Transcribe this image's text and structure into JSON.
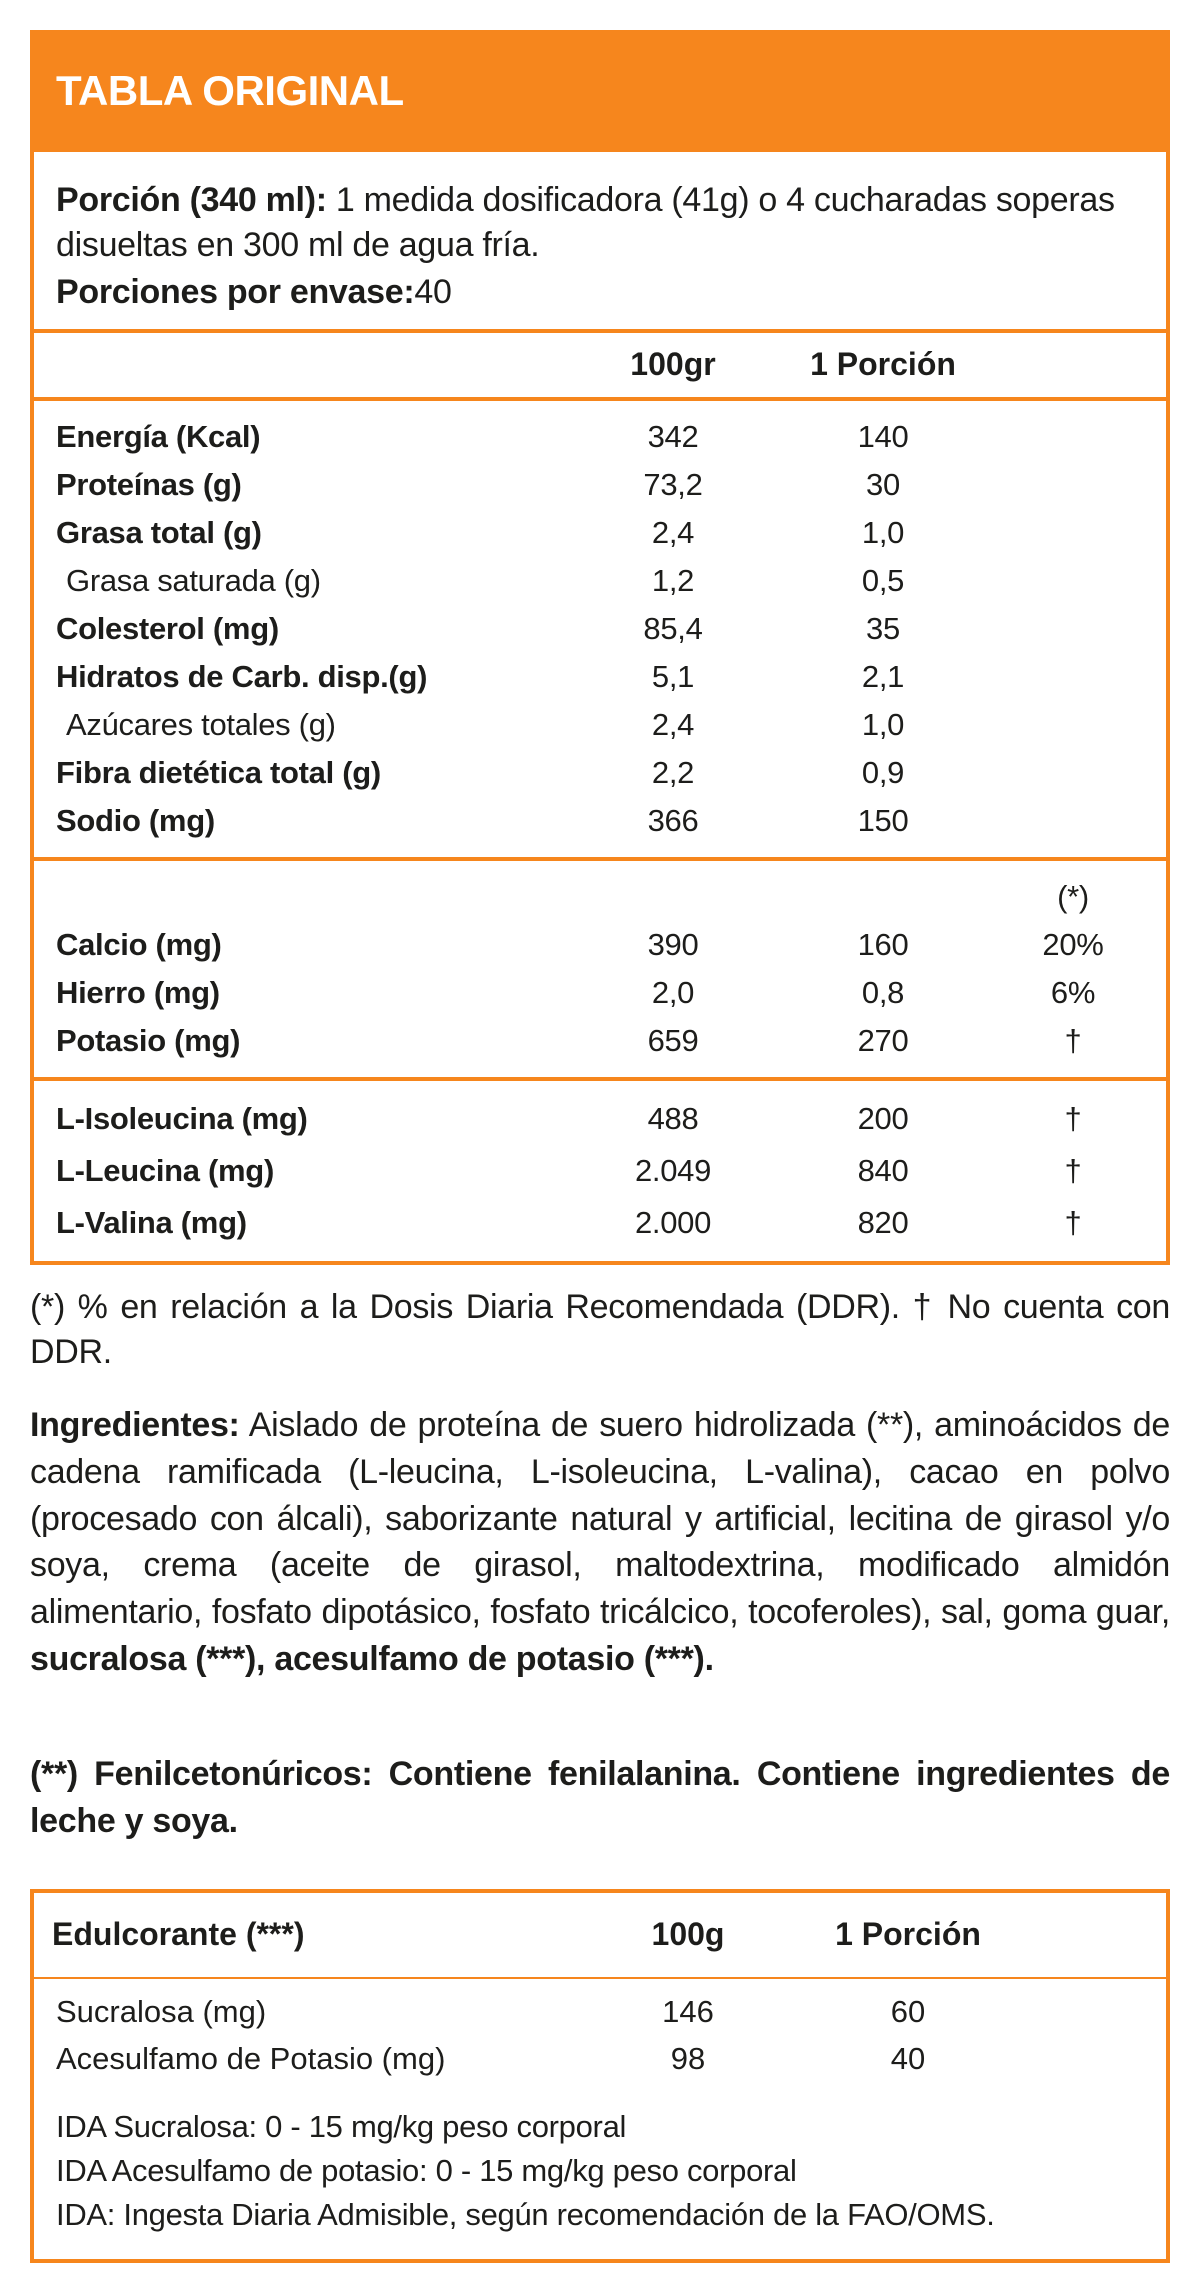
{
  "colors": {
    "accent": "#F6861D",
    "text": "#1d1d1b",
    "background": "#ffffff"
  },
  "header": {
    "title": "TABLA ORIGINAL"
  },
  "serving": {
    "label": "Porción (340 ml):",
    "text": " 1 medida dosificadora (41g) o 4 cucharadas soperas disueltas en 300 ml de agua fría.",
    "per_container_label": "Porciones por envase:",
    "per_container_value": "40"
  },
  "nutrition_table": {
    "columns": {
      "col1": "100gr",
      "col2": "1 Porción",
      "col3": "(*)"
    },
    "rows": [
      {
        "label": "Energía (Kcal)",
        "v100": "342",
        "vportion": "140"
      },
      {
        "label": "Proteínas (g)",
        "v100": "73,2",
        "vportion": "30"
      },
      {
        "label": "Grasa total (g)",
        "v100": "2,4",
        "vportion": "1,0"
      },
      {
        "label": "Grasa saturada (g)",
        "v100": "1,2",
        "vportion": "0,5"
      },
      {
        "label": "Colesterol (mg)",
        "v100": "85,4",
        "vportion": "35"
      },
      {
        "label": "Hidratos de Carb. disp.(g)",
        "v100": "5,1",
        "vportion": "2,1"
      },
      {
        "label": "Azúcares totales (g)",
        "v100": "2,4",
        "vportion": "1,0"
      },
      {
        "label": "Fibra dietética total (g)",
        "v100": "2,2",
        "vportion": "0,9"
      },
      {
        "label": "Sodio (mg)",
        "v100": "366",
        "vportion": "150"
      }
    ],
    "minerals": [
      {
        "label": "Calcio (mg)",
        "v100": "390",
        "vportion": "160",
        "ddr": "20%"
      },
      {
        "label": "Hierro (mg)",
        "v100": "2,0",
        "vportion": "0,8",
        "ddr": "6%"
      },
      {
        "label": "Potasio (mg)",
        "v100": "659",
        "vportion": "270",
        "ddr": "†"
      }
    ],
    "aminoacids": [
      {
        "label": "L-Isoleucina (mg)",
        "v100": "488",
        "vportion": "200",
        "ddr": "†"
      },
      {
        "label": "L-Leucina (mg)",
        "v100": "2.049",
        "vportion": "840",
        "ddr": "†"
      },
      {
        "label": "L-Valina (mg)",
        "v100": "2.000",
        "vportion": "820",
        "ddr": "†"
      }
    ]
  },
  "footnote": "(*) % en relación a la Dosis Diaria Recomendada (DDR).  † No cuenta con DDR.",
  "ingredients": {
    "label": "Ingredientes:",
    "body": " Aislado de proteína de suero hidrolizada (**), aminoácidos de cadena ramificada (L-leucina, L-isoleucina, L-valina), cacao en polvo (procesado con álcali), saborizante natural y artificial, lecitina de girasol y/o soya, crema (aceite de girasol, maltodextrina, modificado almidón alimentario, fosfato dipotásico, fosfato tricálcico, tocoferoles), sal, goma guar,",
    "bold_tail": "sucralosa (***), acesulfamo de potasio (***)."
  },
  "allergen_note": "(**) Fenilcetonúricos: Contiene fenilalanina. Contiene ingredientes de leche y soya.",
  "sweetener_table": {
    "header": {
      "label": "Edulcorante (***)",
      "col1": "100g",
      "col2": "1 Porción"
    },
    "rows": [
      {
        "label": "Sucralosa (mg)",
        "v100": "146",
        "vportion": "60"
      },
      {
        "label": "Acesulfamo de Potasio (mg)",
        "v100": "98",
        "vportion": "40"
      }
    ],
    "notes": [
      "IDA Sucralosa: 0 - 15 mg/kg peso corporal",
      "IDA Acesulfamo de potasio: 0 - 15 mg/kg peso corporal",
      "IDA: Ingesta Diaria Admisible, según recomendación de la FAO/OMS."
    ]
  }
}
